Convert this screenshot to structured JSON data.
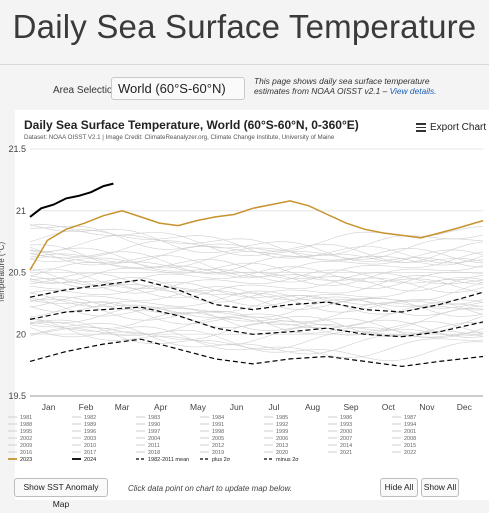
{
  "header": {
    "title": "Daily Sea Surface Temperature"
  },
  "selector": {
    "label": "Area Selection:",
    "value": "World (60°S-60°N)"
  },
  "info": {
    "text": "This page shows daily sea surface temperature estimates from NOAA OISST v2.1 – ",
    "link": "View details."
  },
  "chart": {
    "title": "Daily Sea Surface Temperature, World (60°S-60°N, 0-360°E)",
    "subtitle": "Dataset: NOAA OISST V2.1 | Image Credit: ClimateReanalyzer.org, Climate Change Institute, University of Maine",
    "export_label": "Export Chart"
  },
  "chart_data": {
    "type": "line",
    "ylabel": "Temperature (°C)",
    "ylim": [
      19.5,
      21.5
    ],
    "yticks": [
      "19.5",
      "20",
      "20.5",
      "21",
      "21.5"
    ],
    "months": [
      "Jan",
      "Feb",
      "Mar",
      "Apr",
      "May",
      "Jun",
      "Jul",
      "Aug",
      "Sep",
      "Oct",
      "Nov",
      "Dec"
    ],
    "grid": true,
    "legend_placement": "bottom",
    "series": [
      {
        "name": "2023",
        "color": "#c8922c",
        "x": [
          1,
          15,
          30,
          45,
          60,
          75,
          90,
          105,
          120,
          135,
          150,
          165,
          180,
          195,
          210,
          225,
          240,
          255,
          270,
          285,
          300,
          315,
          330,
          345,
          365
        ],
        "values": [
          20.52,
          20.76,
          20.85,
          20.9,
          20.96,
          21.0,
          20.95,
          20.9,
          20.88,
          20.92,
          20.95,
          20.97,
          21.02,
          21.05,
          21.08,
          21.04,
          20.97,
          20.9,
          20.85,
          20.82,
          20.8,
          20.78,
          20.82,
          20.86,
          20.92
        ]
      },
      {
        "name": "2024",
        "color": "#000000",
        "x": [
          1,
          10,
          20,
          30,
          40,
          50,
          60,
          68
        ],
        "values": [
          20.95,
          21.02,
          21.05,
          21.1,
          21.12,
          21.15,
          21.2,
          21.22
        ]
      },
      {
        "name": "1982-2011 mean",
        "color": "#000000",
        "dash": true,
        "x": [
          1,
          30,
          60,
          90,
          120,
          150,
          180,
          210,
          240,
          270,
          300,
          330,
          365
        ],
        "values": [
          20.12,
          20.18,
          20.2,
          20.22,
          20.15,
          20.05,
          20.0,
          20.02,
          20.05,
          20.0,
          19.98,
          20.02,
          20.1
        ]
      },
      {
        "name": "plus 2σ",
        "color": "#000000",
        "dash": true,
        "x": [
          1,
          30,
          60,
          90,
          120,
          150,
          180,
          210,
          240,
          270,
          300,
          330,
          365
        ],
        "values": [
          20.3,
          20.36,
          20.4,
          20.44,
          20.36,
          20.24,
          20.2,
          20.24,
          20.26,
          20.2,
          20.18,
          20.24,
          20.34
        ]
      },
      {
        "name": "minus 2σ",
        "color": "#000000",
        "dash": true,
        "x": [
          1,
          30,
          60,
          90,
          120,
          150,
          180,
          210,
          240,
          270,
          300,
          330,
          365
        ],
        "values": [
          19.78,
          19.86,
          19.92,
          19.96,
          19.88,
          19.8,
          19.76,
          19.8,
          19.82,
          19.78,
          19.74,
          19.78,
          19.82
        ]
      }
    ]
  },
  "legend": {
    "items": [
      "1981",
      "1982",
      "1983",
      "1984",
      "1985",
      "1986",
      "1987",
      "1988",
      "1989",
      "1990",
      "1991",
      "1992",
      "1993",
      "1994",
      "1995",
      "1996",
      "1997",
      "1998",
      "1999",
      "2000",
      "2001",
      "2002",
      "2003",
      "2004",
      "2005",
      "2006",
      "2007",
      "2008",
      "2009",
      "2010",
      "2011",
      "2012",
      "2013",
      "2014",
      "2015",
      "2016",
      "2017",
      "2018",
      "2019",
      "2020",
      "2021",
      "2022",
      "2023",
      "2024",
      "1982-2011 mean",
      "plus 2σ",
      "minus 2σ"
    ]
  },
  "footer": {
    "anomaly_button": "Show SST Anomaly Map",
    "hint": "Click data point on chart to update map below.",
    "hide_all": "Hide All",
    "show_all": "Show All"
  },
  "colors": {
    "accent_2023": "#c8922c",
    "accent_2024": "#000000",
    "link": "#1a5fb4",
    "history": "#c8c8c8"
  }
}
